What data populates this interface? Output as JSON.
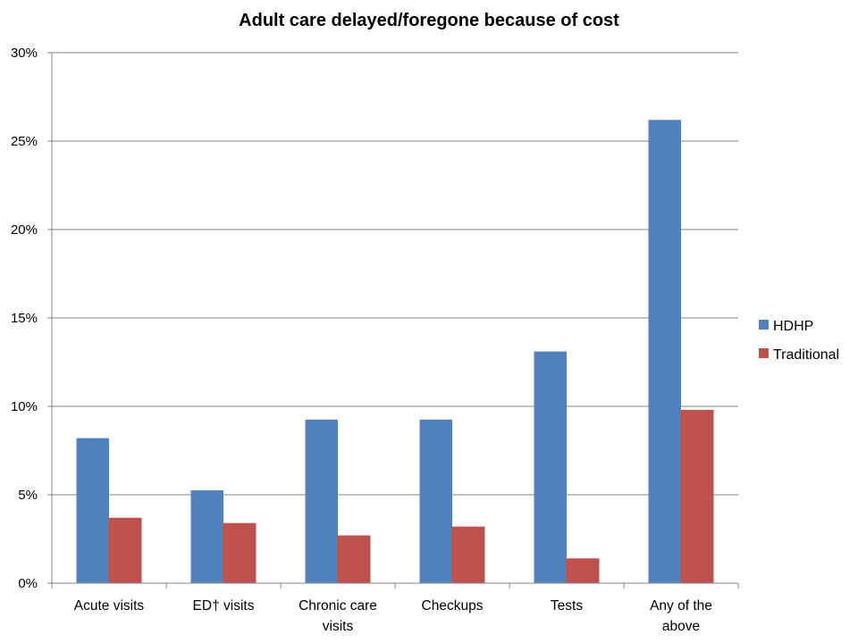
{
  "chart_data": {
    "type": "bar",
    "title": "Adult care delayed/foregone because of cost",
    "xlabel": "",
    "ylabel": "",
    "categories": [
      [
        "Acute visits"
      ],
      [
        "ED† visits"
      ],
      [
        "Chronic care",
        "visits"
      ],
      [
        "Checkups"
      ],
      [
        "Tests"
      ],
      [
        "Any of the",
        "above"
      ]
    ],
    "series": [
      {
        "name": "HDHP",
        "color": "#4f81bd",
        "values": [
          8.2,
          5.25,
          9.25,
          9.25,
          13.1,
          26.2
        ]
      },
      {
        "name": "Traditional",
        "color": "#c0504d",
        "values": [
          3.7,
          3.4,
          2.7,
          3.2,
          1.4,
          9.8
        ]
      }
    ],
    "ylim": [
      0,
      30
    ],
    "yticks": [
      0,
      5,
      10,
      15,
      20,
      25,
      30
    ],
    "ytick_format": "{v}%",
    "grid": true,
    "legend_position": "right"
  }
}
